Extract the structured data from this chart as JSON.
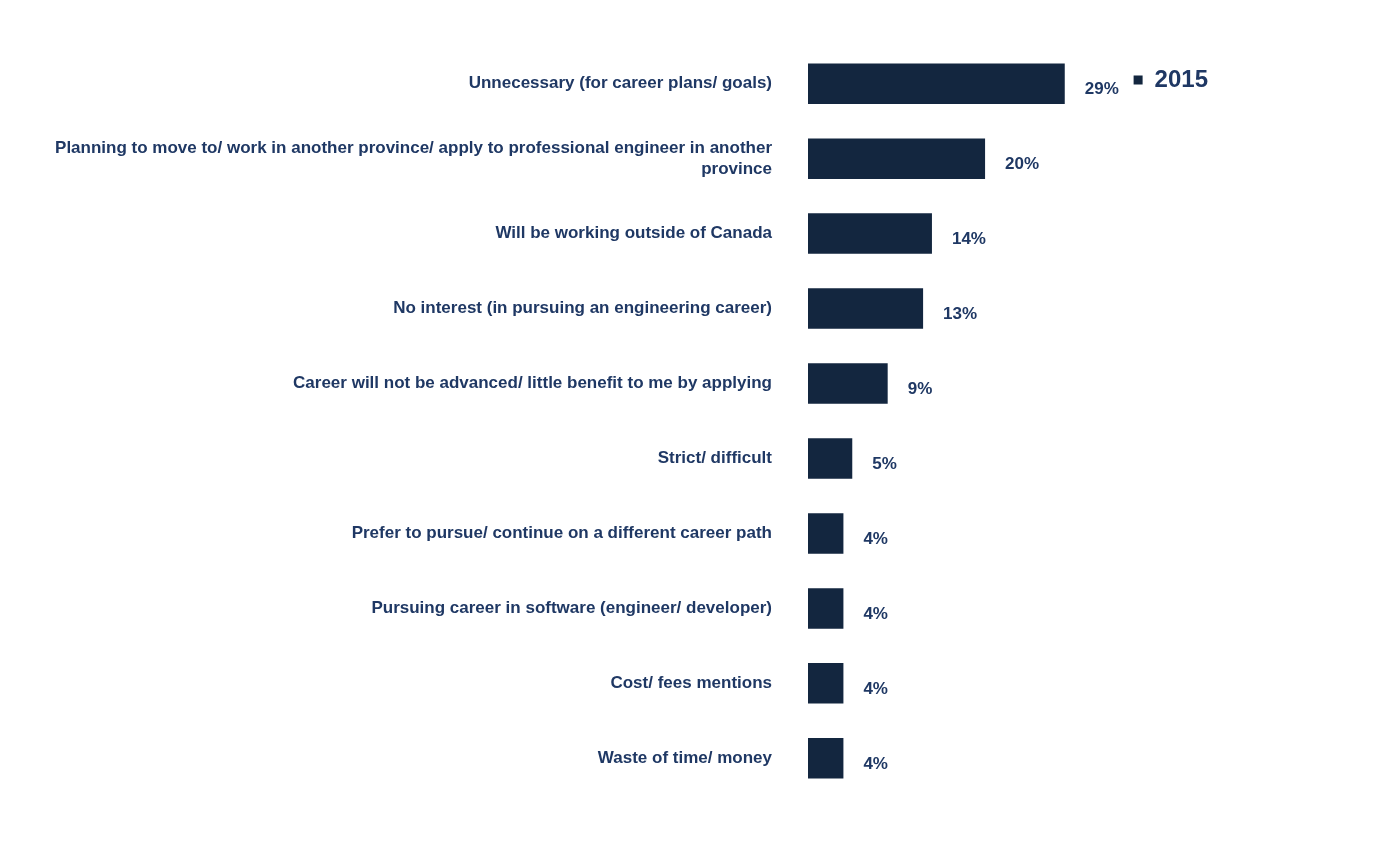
{
  "chart_data": {
    "type": "bar",
    "orientation": "horizontal",
    "categories": [
      "Unnecessary (for career plans/ goals)",
      "Planning to move to/ work in another province/ apply to professional engineer in another province",
      "Will be working outside of Canada",
      "No interest (in pursuing an engineering career)",
      "Career will not be advanced/ little benefit to me by applying",
      "Strict/ difficult",
      "Prefer to pursue/ continue on a different career path",
      "Pursuing career in software (engineer/ developer)",
      "Cost/ fees mentions",
      "Waste of time/ money"
    ],
    "series": [
      {
        "name": "2015",
        "color": "#13263f",
        "values": [
          29,
          20,
          14,
          13,
          9,
          5,
          4,
          4,
          4,
          4
        ],
        "value_labels": [
          "29%",
          "20%",
          "14%",
          "13%",
          "9%",
          "5%",
          "4%",
          "4%",
          "4%",
          "4%"
        ]
      }
    ],
    "legend": "top right"
  }
}
